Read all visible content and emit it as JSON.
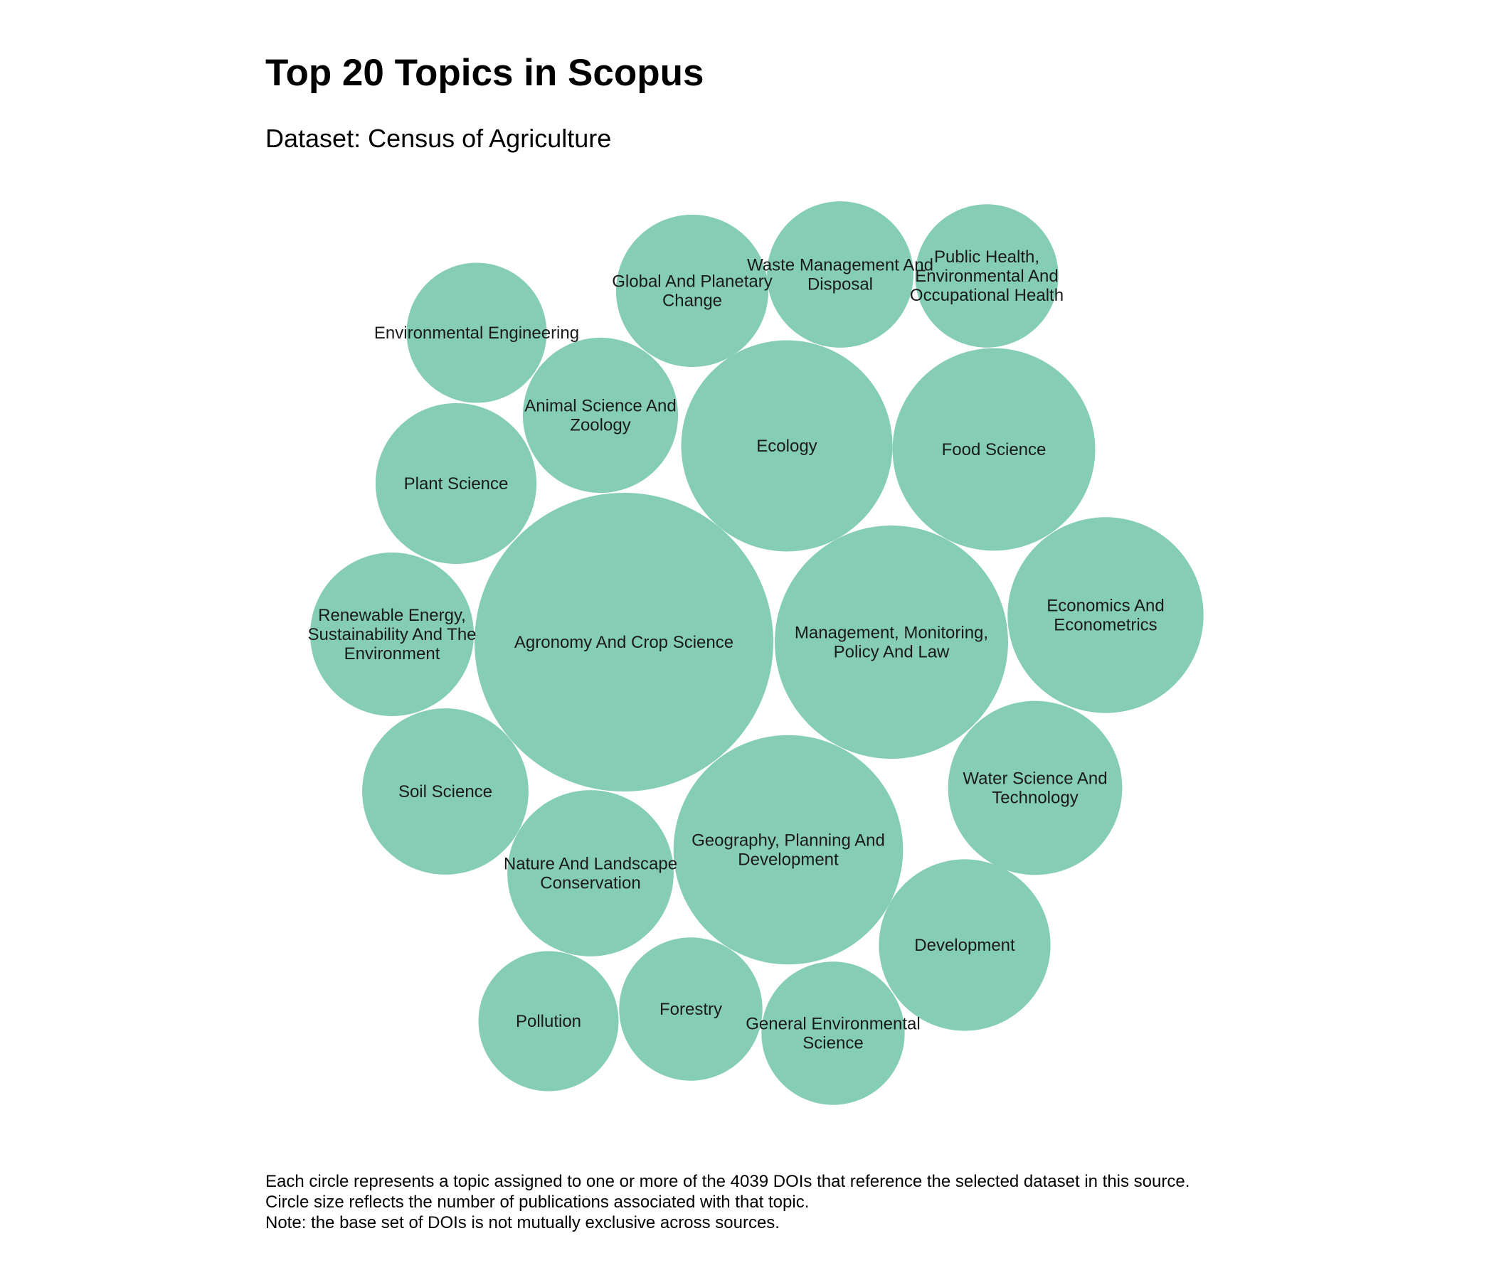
{
  "chart_data": {
    "type": "bubble",
    "title": "Top 20 Topics in Scopus",
    "subtitle": "Dataset: Census of Agriculture",
    "bubble_color": "#86cdb6",
    "topics": [
      {
        "label": "Agronomy And Crop Science",
        "lines": [
          "Agronomy And Crop Science"
        ],
        "relative_size": 1.0
      },
      {
        "label": "Management, Monitoring, Policy And Law",
        "lines": [
          "Management, Monitoring,",
          "Policy And Law"
        ],
        "relative_size": 0.61
      },
      {
        "label": "Geography, Planning And Development",
        "lines": [
          "Geography, Planning And",
          "Development"
        ],
        "relative_size": 0.59
      },
      {
        "label": "Ecology",
        "lines": [
          "Ecology"
        ],
        "relative_size": 0.5
      },
      {
        "label": "Food Science",
        "lines": [
          "Food Science"
        ],
        "relative_size": 0.46
      },
      {
        "label": "Economics And Econometrics",
        "lines": [
          "Economics And",
          "Econometrics"
        ],
        "relative_size": 0.43
      },
      {
        "label": "Water Science And Technology",
        "lines": [
          "Water Science And",
          "Technology"
        ],
        "relative_size": 0.34
      },
      {
        "label": "Development",
        "lines": [
          "Development"
        ],
        "relative_size": 0.33
      },
      {
        "label": "Soil Science",
        "lines": [
          "Soil Science"
        ],
        "relative_size": 0.31
      },
      {
        "label": "Nature And Landscape Conservation",
        "lines": [
          "Nature And Landscape",
          "Conservation"
        ],
        "relative_size": 0.31
      },
      {
        "label": "Renewable Energy, Sustainability And The Environment",
        "lines": [
          "Renewable Energy,",
          "Sustainability And The",
          "Environment"
        ],
        "relative_size": 0.3
      },
      {
        "label": "Plant Science",
        "lines": [
          "Plant Science"
        ],
        "relative_size": 0.29
      },
      {
        "label": "Animal Science And Zoology",
        "lines": [
          "Animal Science And",
          "Zoology"
        ],
        "relative_size": 0.27
      },
      {
        "label": "Global And Planetary Change",
        "lines": [
          "Global And Planetary",
          "Change"
        ],
        "relative_size": 0.26
      },
      {
        "label": "Waste Management And Disposal",
        "lines": [
          "Waste Management And",
          "Disposal"
        ],
        "relative_size": 0.24
      },
      {
        "label": "Public Health, Environmental And Occupational Health",
        "lines": [
          "Public Health,",
          "Environmental And",
          "Occupational Health"
        ],
        "relative_size": 0.23
      },
      {
        "label": "General Environmental Science",
        "lines": [
          "General Environmental",
          "Science"
        ],
        "relative_size": 0.23
      },
      {
        "label": "Forestry",
        "lines": [
          "Forestry"
        ],
        "relative_size": 0.23
      },
      {
        "label": "Environmental Engineering",
        "lines": [
          "Environmental Engineering"
        ],
        "relative_size": 0.22
      },
      {
        "label": "Pollution",
        "lines": [
          "Pollution"
        ],
        "relative_size": 0.22
      }
    ],
    "legend": "none",
    "grid": false
  },
  "caption": [
    "Each circle represents a topic assigned to one or more of the 4039 DOIs that reference the selected dataset in this source.",
    "Circle size reflects the number of publications associated with that topic.",
    "Note: the base set of DOIs is not mutually exclusive across sources."
  ]
}
